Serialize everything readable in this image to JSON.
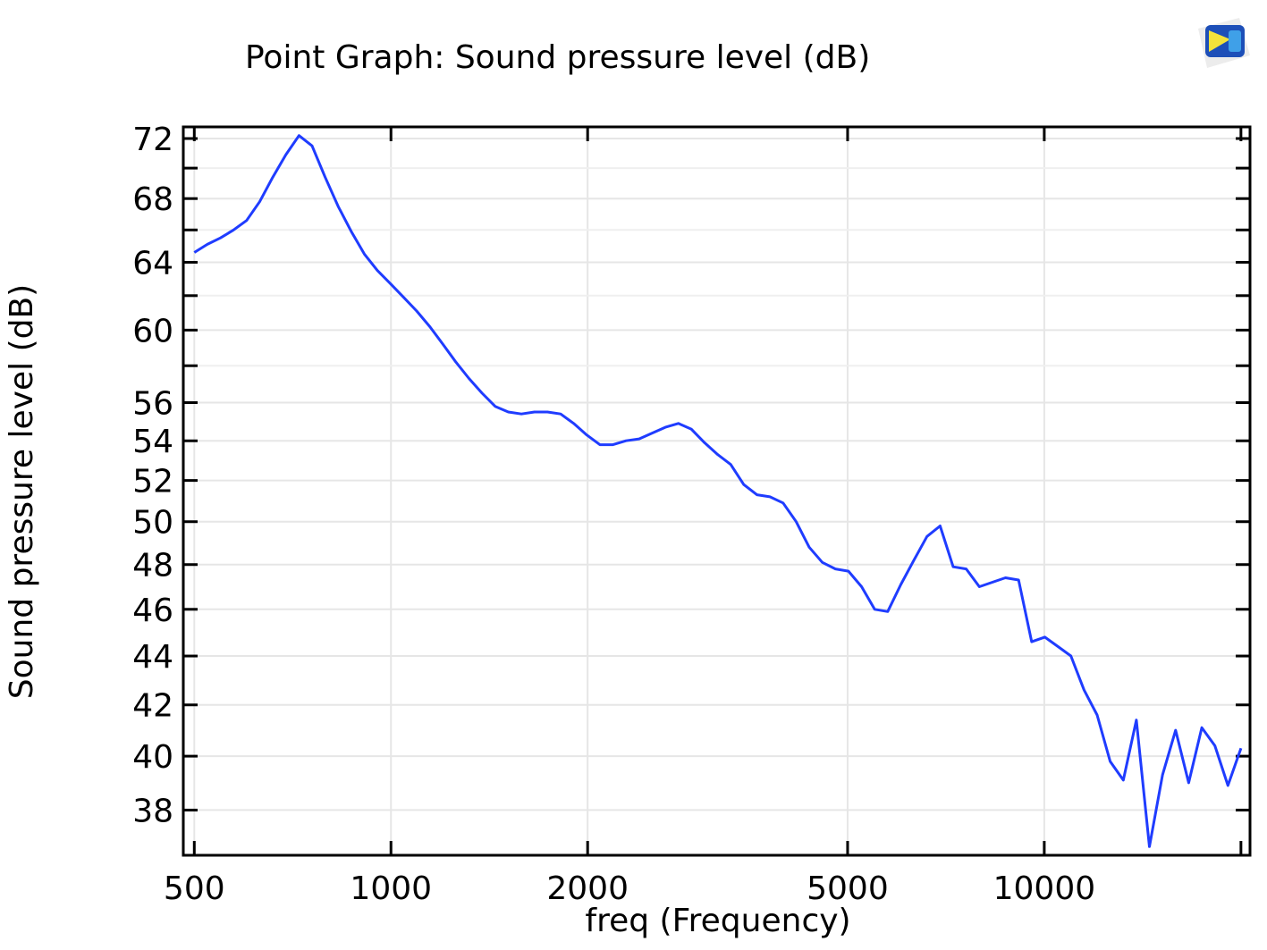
{
  "chart_data": {
    "type": "line",
    "title": "Point Graph: Sound pressure level (dB)",
    "xlabel": "freq (Frequency)",
    "ylabel": "Sound pressure level (dB)",
    "xscale": "log",
    "yscale": "log",
    "xlim": [
      481,
      20650
    ],
    "ylim": [
      36.4,
      72.8
    ],
    "grid": true,
    "legend": "none",
    "x_ticks": [
      500,
      1000,
      2000,
      5000,
      10000
    ],
    "x_tick_labels": [
      "500",
      "1000",
      "2000",
      "5000",
      "10000"
    ],
    "x_minor_ticks": [
      20000
    ],
    "y_ticks": [
      38,
      40,
      42,
      44,
      46,
      48,
      50,
      52,
      54,
      56,
      60,
      64,
      68,
      72
    ],
    "y_tick_labels": [
      "38",
      "40",
      "42",
      "44",
      "46",
      "48",
      "50",
      "52",
      "54",
      "56",
      "60",
      "64",
      "68",
      "72"
    ],
    "y_minor_ticks": [
      58,
      62,
      66,
      70
    ],
    "series": [
      {
        "name": "Sound pressure level",
        "color": "#1f3cff",
        "x": [
          500,
          523.6,
          548.3,
          574.2,
          601.3,
          629.6,
          659.3,
          690.5,
          723.1,
          757.2,
          792.9,
          830.3,
          869.5,
          910.5,
          953.5,
          998.5,
          1045.6,
          1095,
          1146.6,
          1200.7,
          1257.4,
          1316.7,
          1378.9,
          1444,
          1512.1,
          1583.4,
          1658.2,
          1736.4,
          1818.4,
          1904.2,
          1994,
          2088.1,
          2186.7,
          2289.9,
          2398,
          2511.2,
          2629.7,
          2753.8,
          2883.8,
          3019.9,
          3162.3,
          3311.6,
          3467.9,
          3631.6,
          3803,
          3982.5,
          4170.5,
          4367.3,
          4573.5,
          4789.3,
          5015.4,
          5252.1,
          5500,
          5759.6,
          6031.5,
          6316.2,
          6614.3,
          6926.5,
          7253.5,
          7595.9,
          7954.4,
          8329.9,
          8723,
          9134.8,
          9565.9,
          10017.4,
          10490.2,
          10985.4,
          11503.9,
          12046.9,
          12615.5,
          13211,
          13834.5,
          14487.5,
          15171.3,
          15887.4,
          16637.3,
          17422.6,
          18245,
          19106.1,
          20000
        ],
        "y": [
          64.6,
          65.1,
          65.5,
          66.0,
          66.6,
          67.8,
          69.4,
          70.9,
          72.2,
          71.5,
          69.4,
          67.5,
          65.9,
          64.5,
          63.5,
          62.7,
          61.9,
          61.1,
          60.2,
          59.2,
          58.2,
          57.3,
          56.5,
          55.8,
          55.5,
          55.4,
          55.5,
          55.5,
          55.4,
          54.9,
          54.3,
          53.8,
          53.8,
          54.0,
          54.1,
          54.4,
          54.7,
          54.9,
          54.6,
          53.9,
          53.3,
          52.8,
          51.8,
          51.3,
          51.2,
          50.9,
          50.0,
          48.8,
          48.1,
          47.8,
          47.7,
          47.0,
          46.0,
          45.9,
          47.1,
          48.2,
          49.3,
          49.8,
          47.9,
          47.8,
          47.0,
          47.2,
          47.4,
          47.3,
          44.6,
          44.8,
          44.4,
          44.0,
          42.6,
          41.6,
          39.8,
          39.1,
          41.4,
          36.7,
          39.3,
          41.0,
          39.0,
          41.1,
          40.4,
          38.9,
          40.3
        ]
      }
    ]
  },
  "logo": {
    "name": "comsol-logo-icon"
  }
}
